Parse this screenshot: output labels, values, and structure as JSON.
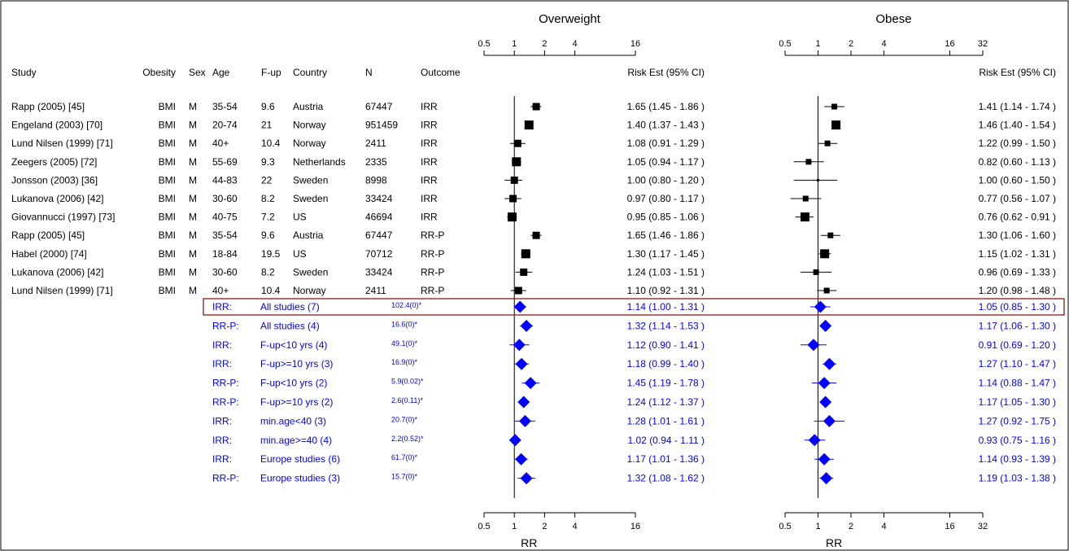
{
  "chart_data": {
    "type": "forest",
    "panels": [
      {
        "title": "Overweight",
        "risk_header": "Risk Est (95% CI)",
        "axis_label": "RR",
        "x_scale": "log2",
        "xlim": [
          0.5,
          16
        ],
        "ticks": [
          "0.5",
          "1",
          "2",
          "4",
          "16"
        ],
        "tick_values": [
          0.5,
          1,
          2,
          4,
          16
        ],
        "reference_line": 1
      },
      {
        "title": "Obese",
        "risk_header": "Risk Est (95% CI)",
        "axis_label": "RR",
        "x_scale": "log2",
        "xlim": [
          0.5,
          32
        ],
        "ticks": [
          "0.5",
          "1",
          "2",
          "4",
          "16",
          "32"
        ],
        "tick_values": [
          0.5,
          1,
          2,
          4,
          16,
          32
        ],
        "reference_line": 1
      }
    ],
    "columns": [
      "Study",
      "Obesity",
      "Sex",
      "Age",
      "F-up",
      "Country",
      "N",
      "Outcome"
    ],
    "studies": [
      {
        "study": "Rapp (2005) [45]",
        "obesity": "BMI",
        "sex": "M",
        "age": "35-54",
        "fup": "9.6",
        "country": "Austria",
        "n": "67447",
        "outcome": "IRR",
        "ow": {
          "est": 1.65,
          "lo": 1.45,
          "hi": 1.86,
          "text": "1.65  (1.45  - 1.86 )"
        },
        "ob": {
          "est": 1.41,
          "lo": 1.14,
          "hi": 1.74,
          "text": "1.41  (1.14  - 1.74 )"
        }
      },
      {
        "study": "Engeland (2003) [70]",
        "obesity": "BMI",
        "sex": "M",
        "age": "20-74",
        "fup": "21",
        "country": "Norway",
        "n": "951459",
        "outcome": "IRR",
        "ow": {
          "est": 1.4,
          "lo": 1.37,
          "hi": 1.43,
          "text": "1.40  (1.37  - 1.43 )"
        },
        "ob": {
          "est": 1.46,
          "lo": 1.4,
          "hi": 1.54,
          "text": "1.46  (1.40  - 1.54 )"
        }
      },
      {
        "study": "Lund Nilsen (1999) [71]",
        "obesity": "BMI",
        "sex": "M",
        "age": "40+",
        "fup": "10.4",
        "country": "Norway",
        "n": "2411",
        "outcome": "IRR",
        "ow": {
          "est": 1.08,
          "lo": 0.91,
          "hi": 1.29,
          "text": "1.08  (0.91  - 1.29 )"
        },
        "ob": {
          "est": 1.22,
          "lo": 0.99,
          "hi": 1.5,
          "text": "1.22  (0.99  - 1.50 )"
        }
      },
      {
        "study": "Zeegers (2005) [72]",
        "obesity": "BMI",
        "sex": "M",
        "age": "55-69",
        "fup": "9.3",
        "country": "Netherlands",
        "n": "2335",
        "outcome": "IRR",
        "ow": {
          "est": 1.05,
          "lo": 0.94,
          "hi": 1.17,
          "text": "1.05  (0.94  - 1.17 )"
        },
        "ob": {
          "est": 0.82,
          "lo": 0.6,
          "hi": 1.13,
          "text": "0.82  (0.60  - 1.13 )"
        }
      },
      {
        "study": "Jonsson (2003) [36]",
        "obesity": "BMI",
        "sex": "M",
        "age": "44-83",
        "fup": "22",
        "country": "Sweden",
        "n": "8998",
        "outcome": "IRR",
        "ow": {
          "est": 1.0,
          "lo": 0.8,
          "hi": 1.2,
          "text": "1.00  (0.80  - 1.20 )"
        },
        "ob": {
          "est": 1.0,
          "lo": 0.6,
          "hi": 1.5,
          "text": "1.00  (0.60  - 1.50 )"
        }
      },
      {
        "study": "Lukanova (2006) [42]",
        "obesity": "BMI",
        "sex": "M",
        "age": "30-60",
        "fup": "8.2",
        "country": "Sweden",
        "n": "33424",
        "outcome": "IRR",
        "ow": {
          "est": 0.97,
          "lo": 0.8,
          "hi": 1.17,
          "text": "0.97  (0.80  - 1.17 )"
        },
        "ob": {
          "est": 0.77,
          "lo": 0.56,
          "hi": 1.07,
          "text": "0.77  (0.56  - 1.07 )"
        }
      },
      {
        "study": "Giovannucci (1997) [73]",
        "obesity": "BMI",
        "sex": "M",
        "age": "40-75",
        "fup": "7.2",
        "country": "US",
        "n": "46694",
        "outcome": "IRR",
        "ow": {
          "est": 0.95,
          "lo": 0.85,
          "hi": 1.06,
          "text": "0.95  (0.85  - 1.06 )"
        },
        "ob": {
          "est": 0.76,
          "lo": 0.62,
          "hi": 0.91,
          "text": "0.76  (0.62  - 0.91 )"
        }
      },
      {
        "study": "Rapp (2005) [45]",
        "obesity": "BMI",
        "sex": "M",
        "age": "35-54",
        "fup": "9.6",
        "country": "Austria",
        "n": "67447",
        "outcome": "RR-P",
        "ow": {
          "est": 1.65,
          "lo": 1.46,
          "hi": 1.86,
          "text": "1.65  (1.46  - 1.86 )"
        },
        "ob": {
          "est": 1.3,
          "lo": 1.06,
          "hi": 1.6,
          "text": "1.30  (1.06  - 1.60 )"
        }
      },
      {
        "study": "Habel (2000) [74]",
        "obesity": "BMI",
        "sex": "M",
        "age": "18-84",
        "fup": "19.5",
        "country": "US",
        "n": "70712",
        "outcome": "RR-P",
        "ow": {
          "est": 1.3,
          "lo": 1.17,
          "hi": 1.45,
          "text": "1.30  (1.17  - 1.45 )"
        },
        "ob": {
          "est": 1.15,
          "lo": 1.02,
          "hi": 1.31,
          "text": "1.15  (1.02  - 1.31 )"
        }
      },
      {
        "study": "Lukanova (2006) [42]",
        "obesity": "BMI",
        "sex": "M",
        "age": "30-60",
        "fup": "8.2",
        "country": "Sweden",
        "n": "33424",
        "outcome": "RR-P",
        "ow": {
          "est": 1.24,
          "lo": 1.03,
          "hi": 1.51,
          "text": "1.24  (1.03  - 1.51 )"
        },
        "ob": {
          "est": 0.96,
          "lo": 0.69,
          "hi": 1.33,
          "text": "0.96  (0.69  - 1.33 )"
        }
      },
      {
        "study": "Lund Nilsen (1999) [71]",
        "obesity": "BMI",
        "sex": "M",
        "age": "40+",
        "fup": "10.4",
        "country": "Norway",
        "n": "2411",
        "outcome": "RR-P",
        "ow": {
          "est": 1.1,
          "lo": 0.92,
          "hi": 1.31,
          "text": "1.10  (0.92  - 1.31 )"
        },
        "ob": {
          "est": 1.2,
          "lo": 0.98,
          "hi": 1.48,
          "text": "1.20  (0.98  - 1.48 )"
        }
      }
    ],
    "summaries": [
      {
        "outcome": "IRR:",
        "label": "All studies (7)",
        "het": "102.4(0)*",
        "highlighted": true,
        "ow": {
          "est": 1.14,
          "lo": 1.0,
          "hi": 1.31,
          "text": "1.14  (1.00  - 1.31 )"
        },
        "ob": {
          "est": 1.05,
          "lo": 0.85,
          "hi": 1.3,
          "text": "1.05  (0.85  - 1.30 )"
        }
      },
      {
        "outcome": "RR-P:",
        "label": "All studies (4)",
        "het": "16.6(0)*",
        "highlighted": false,
        "ow": {
          "est": 1.32,
          "lo": 1.14,
          "hi": 1.53,
          "text": "1.32  (1.14  - 1.53 )"
        },
        "ob": {
          "est": 1.17,
          "lo": 1.06,
          "hi": 1.3,
          "text": "1.17  (1.06  - 1.30 )"
        }
      },
      {
        "outcome": "IRR:",
        "label": "F-up<10 yrs (4)",
        "het": "49.1(0)*",
        "highlighted": false,
        "ow": {
          "est": 1.12,
          "lo": 0.9,
          "hi": 1.41,
          "text": "1.12  (0.90  - 1.41 )"
        },
        "ob": {
          "est": 0.91,
          "lo": 0.69,
          "hi": 1.2,
          "text": "0.91  (0.69  - 1.20 )"
        }
      },
      {
        "outcome": "IRR:",
        "label": "F-up>=10 yrs (3)",
        "het": "16.9(0)*",
        "highlighted": false,
        "ow": {
          "est": 1.18,
          "lo": 0.99,
          "hi": 1.4,
          "text": "1.18  (0.99  - 1.40 )"
        },
        "ob": {
          "est": 1.27,
          "lo": 1.1,
          "hi": 1.47,
          "text": "1.27  (1.10  - 1.47 )"
        }
      },
      {
        "outcome": "RR-P:",
        "label": "F-up<10 yrs (2)",
        "het": "5.9(0.02)*",
        "highlighted": false,
        "ow": {
          "est": 1.45,
          "lo": 1.19,
          "hi": 1.78,
          "text": "1.45  (1.19  - 1.78 )"
        },
        "ob": {
          "est": 1.14,
          "lo": 0.88,
          "hi": 1.47,
          "text": "1.14  (0.88  - 1.47 )"
        }
      },
      {
        "outcome": "RR-P:",
        "label": "F-up>=10 yrs (2)",
        "het": "2.6(0.11)*",
        "highlighted": false,
        "ow": {
          "est": 1.24,
          "lo": 1.12,
          "hi": 1.37,
          "text": "1.24  (1.12  - 1.37 )"
        },
        "ob": {
          "est": 1.17,
          "lo": 1.05,
          "hi": 1.3,
          "text": "1.17  (1.05  - 1.30 )"
        }
      },
      {
        "outcome": "IRR:",
        "label": "min.age<40 (3)",
        "het": "20.7(0)*",
        "highlighted": false,
        "ow": {
          "est": 1.28,
          "lo": 1.01,
          "hi": 1.61,
          "text": "1.28  (1.01  - 1.61 )"
        },
        "ob": {
          "est": 1.27,
          "lo": 0.92,
          "hi": 1.75,
          "text": "1.27  (0.92  - 1.75 )"
        }
      },
      {
        "outcome": "IRR:",
        "label": "min.age>=40 (4)",
        "het": "2.2(0.52)*",
        "highlighted": false,
        "ow": {
          "est": 1.02,
          "lo": 0.94,
          "hi": 1.11,
          "text": "1.02  (0.94  - 1.11 )"
        },
        "ob": {
          "est": 0.93,
          "lo": 0.75,
          "hi": 1.16,
          "text": "0.93  (0.75  - 1.16 )"
        }
      },
      {
        "outcome": "IRR:",
        "label": "Europe studies (6)",
        "het": "61.7(0)*",
        "highlighted": false,
        "ow": {
          "est": 1.17,
          "lo": 1.01,
          "hi": 1.36,
          "text": "1.17  (1.01  - 1.36 )"
        },
        "ob": {
          "est": 1.14,
          "lo": 0.93,
          "hi": 1.39,
          "text": "1.14  (0.93  - 1.39 )"
        }
      },
      {
        "outcome": "RR-P:",
        "label": "Europe studies (3)",
        "het": "15.7(0)*",
        "highlighted": false,
        "ow": {
          "est": 1.32,
          "lo": 1.08,
          "hi": 1.62,
          "text": "1.32  (1.08  - 1.62 )"
        },
        "ob": {
          "est": 1.19,
          "lo": 1.03,
          "hi": 1.38,
          "text": "1.19  (1.03  - 1.38 )"
        }
      }
    ],
    "colors": {
      "study": "#000000",
      "summary": "#0000ff",
      "highlight_box": "#8b1a1a"
    }
  }
}
